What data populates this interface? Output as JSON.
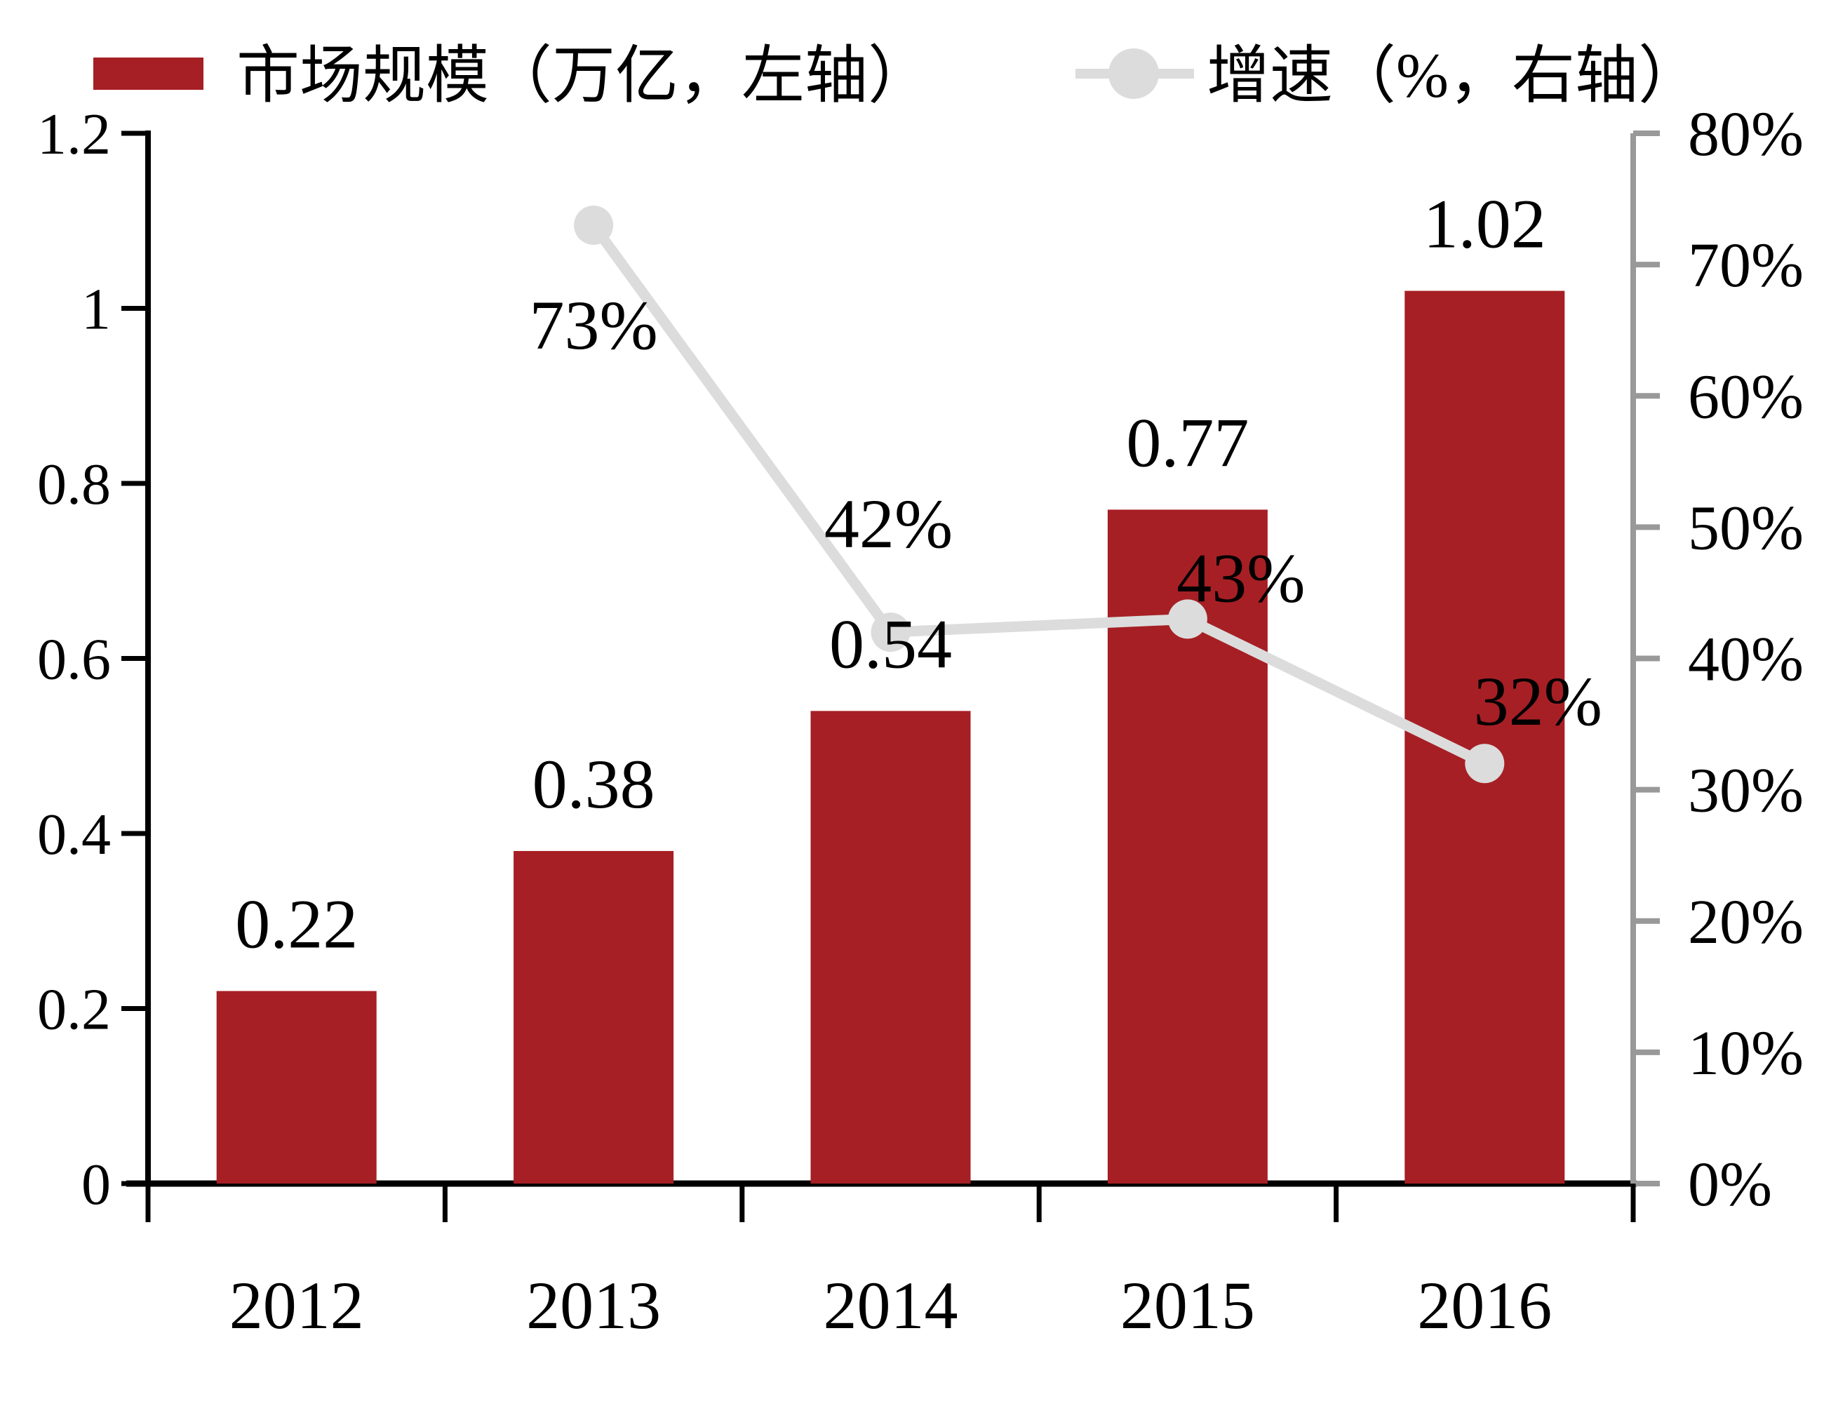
{
  "colors": {
    "bar": "#A61F24",
    "line": "#DCDCDC",
    "marker": "#DCDCDC",
    "axis_black": "#000000",
    "axis_gray": "#999999",
    "text": "#000000",
    "background": "#FFFFFF"
  },
  "legend": {
    "items": [
      {
        "label": "市场规模（万亿，左轴）",
        "marker": "bar-swatch",
        "color": "#A61F24"
      },
      {
        "label": "增速（%，右轴）",
        "marker": "line-circle",
        "color": "#DCDCDC"
      }
    ]
  },
  "chart_data": {
    "type": "combo_bar_line",
    "title": "",
    "categories": [
      "2012",
      "2013",
      "2014",
      "2015",
      "2016"
    ],
    "series": [
      {
        "name": "市场规模（万亿，左轴）",
        "type": "bar",
        "axis": "left",
        "values": [
          0.22,
          0.38,
          0.54,
          0.77,
          1.02
        ],
        "data_labels": [
          "0.22",
          "0.38",
          "0.54",
          "0.77",
          "1.02"
        ],
        "color": "#A61F24"
      },
      {
        "name": "增速（%，右轴）",
        "type": "line",
        "axis": "right",
        "values": [
          null,
          73,
          42,
          43,
          32
        ],
        "data_labels": [
          null,
          "73%",
          "42%",
          "43%",
          "32%"
        ],
        "color": "#DCDCDC"
      }
    ],
    "left_axis": {
      "min": 0,
      "max": 1.2,
      "tick_labels": [
        "0",
        "0.2",
        "0.4",
        "0.6",
        "0.8",
        "1",
        "1.2"
      ]
    },
    "right_axis": {
      "min": 0,
      "max": 80,
      "tick_labels": [
        "0%",
        "10%",
        "20%",
        "30%",
        "40%",
        "50%",
        "60%",
        "70%",
        "80%"
      ]
    },
    "legend_position": "top",
    "grid": false
  }
}
